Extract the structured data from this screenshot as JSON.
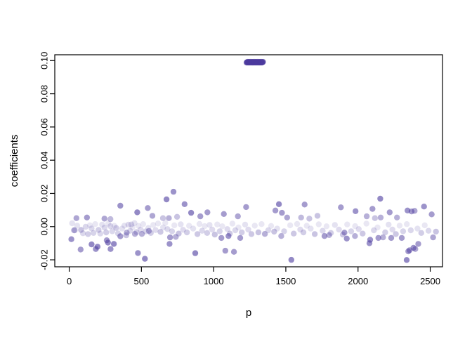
{
  "chart_data": {
    "type": "scatter",
    "title": "",
    "xlabel": "p",
    "ylabel": "coefficients",
    "grid": false,
    "legend": null,
    "point_color": "#4b3a9e",
    "axis_color": "#000000",
    "x_ticks": {
      "values": [
        0,
        500,
        1000,
        1500,
        2000,
        2500
      ],
      "labels": [
        "0",
        "500",
        "1000",
        "1500",
        "2000",
        "2500"
      ]
    },
    "y_ticks": {
      "values": [
        -0.02,
        0.0,
        0.02,
        0.04,
        0.06,
        0.08,
        0.1
      ],
      "labels": [
        "-0.02",
        "0.00",
        "0.02",
        "0.04",
        "0.06",
        "0.08",
        "0.10"
      ]
    },
    "x_range": [
      -100,
      2585
    ],
    "y_range": [
      -0.0242,
      0.1035
    ],
    "outlier_cluster": {
      "p_from": 1228,
      "p_to": 1342,
      "n": 60,
      "value": 0.099,
      "alpha": 0.5
    },
    "points": [
      [
        50,
        0.0051,
        0.45
      ],
      [
        123,
        0.0055,
        0.5
      ],
      [
        244,
        0.0048,
        0.45
      ],
      [
        285,
        0.0045,
        0.35
      ],
      [
        354,
        0.0126,
        0.55
      ],
      [
        471,
        0.0086,
        0.6
      ],
      [
        544,
        0.0112,
        0.5
      ],
      [
        576,
        0.0065,
        0.45
      ],
      [
        15,
        -0.0076,
        0.55
      ],
      [
        79,
        -0.0138,
        0.5
      ],
      [
        155,
        -0.0107,
        0.6
      ],
      [
        184,
        -0.0135,
        0.55
      ],
      [
        196,
        -0.0121,
        0.6
      ],
      [
        268,
        -0.0096,
        0.6
      ],
      [
        286,
        -0.0135,
        0.55
      ],
      [
        309,
        -0.0104,
        0.6
      ],
      [
        260,
        -0.0082,
        0.5
      ],
      [
        354,
        -0.0058,
        0.5
      ],
      [
        398,
        -0.0036,
        0.4
      ],
      [
        455,
        -0.0044,
        0.4
      ],
      [
        476,
        -0.0159,
        0.55
      ],
      [
        503,
        -0.0044,
        0.4
      ],
      [
        524,
        -0.0194,
        0.6
      ],
      [
        552,
        -0.0026,
        0.4
      ],
      [
        33,
        -0.0022,
        0.3
      ],
      [
        82,
        -0.002,
        0.3
      ],
      [
        114,
        -0.0001,
        0.2
      ],
      [
        155,
        -0.0011,
        0.2
      ],
      [
        203,
        -0.002,
        0.25
      ],
      [
        244,
        -0.0006,
        0.2
      ],
      [
        285,
        0.0003,
        0.2
      ],
      [
        325,
        -0.0008,
        0.25
      ],
      [
        382,
        0.0006,
        0.15
      ],
      [
        430,
        0.0013,
        0.2
      ],
      [
        722,
        0.021,
        0.55
      ],
      [
        674,
        0.0164,
        0.6
      ],
      [
        799,
        0.0135,
        0.55
      ],
      [
        844,
        0.0083,
        0.6
      ],
      [
        908,
        0.0062,
        0.5
      ],
      [
        957,
        0.0086,
        0.5
      ],
      [
        1071,
        0.0076,
        0.5
      ],
      [
        1168,
        0.0062,
        0.45
      ],
      [
        1225,
        0.0118,
        0.5
      ],
      [
        649,
        0.0051,
        0.3
      ],
      [
        690,
        0.0051,
        0.4
      ],
      [
        747,
        0.0059,
        0.3
      ],
      [
        698,
        -0.0065,
        0.5
      ],
      [
        738,
        -0.0062,
        0.4
      ],
      [
        695,
        -0.0104,
        0.55
      ],
      [
        873,
        -0.016,
        0.6
      ],
      [
        1081,
        -0.0145,
        0.5
      ],
      [
        1141,
        -0.0152,
        0.5
      ],
      [
        1054,
        -0.0068,
        0.5
      ],
      [
        1103,
        -0.0057,
        0.55
      ],
      [
        1184,
        -0.0068,
        0.5
      ],
      [
        1452,
        0.0135,
        0.6
      ],
      [
        1630,
        0.0133,
        0.5
      ],
      [
        1428,
        0.0097,
        0.5
      ],
      [
        1473,
        0.0083,
        0.5
      ],
      [
        1509,
        0.0055,
        0.45
      ],
      [
        1881,
        0.0116,
        0.5
      ],
      [
        1983,
        0.0093,
        0.55
      ],
      [
        1606,
        0.0055,
        0.35
      ],
      [
        1663,
        0.0048,
        0.3
      ],
      [
        1719,
        0.0065,
        0.3
      ],
      [
        1355,
        -0.0044,
        0.4
      ],
      [
        1419,
        -0.003,
        0.3
      ],
      [
        1468,
        -0.0057,
        0.4
      ],
      [
        1768,
        -0.0057,
        0.5
      ],
      [
        1800,
        -0.0051,
        0.4
      ],
      [
        1906,
        -0.0036,
        0.5
      ],
      [
        1922,
        -0.0072,
        0.55
      ],
      [
        1979,
        -0.0057,
        0.4
      ],
      [
        1538,
        -0.02,
        0.6
      ],
      [
        2154,
        0.0168,
        0.6
      ],
      [
        2100,
        0.0107,
        0.5
      ],
      [
        2219,
        0.0086,
        0.5
      ],
      [
        2343,
        0.0097,
        0.55
      ],
      [
        2371,
        0.0091,
        0.5
      ],
      [
        2392,
        0.0095,
        0.45
      ],
      [
        2457,
        0.0121,
        0.55
      ],
      [
        2270,
        0.0055,
        0.4
      ],
      [
        2060,
        0.0062,
        0.4
      ],
      [
        2117,
        0.0051,
        0.3
      ],
      [
        2157,
        0.0055,
        0.4
      ],
      [
        2084,
        -0.0079,
        0.55
      ],
      [
        2141,
        -0.0068,
        0.5
      ],
      [
        2173,
        -0.0065,
        0.4
      ],
      [
        2230,
        -0.0068,
        0.5
      ],
      [
        2303,
        -0.0068,
        0.5
      ],
      [
        2079,
        -0.01,
        0.55
      ],
      [
        2384,
        -0.0128,
        0.55
      ],
      [
        2417,
        -0.0104,
        0.5
      ],
      [
        2357,
        -0.0142,
        0.5
      ],
      [
        2337,
        -0.0201,
        0.6
      ],
      [
        2348,
        -0.0149,
        0.5
      ],
      [
        2397,
        -0.0135,
        0.45
      ],
      [
        2510,
        0.0074,
        0.5
      ],
      [
        2520,
        -0.0065,
        0.45
      ],
      [
        2540,
        -0.003,
        0.3
      ],
      [
        20,
        0.002,
        0.15
      ],
      [
        38,
        -0.0022,
        0.3
      ],
      [
        55,
        0.0006,
        0.15
      ],
      [
        95,
        -0.004,
        0.2
      ],
      [
        130,
        -0.0045,
        0.25
      ],
      [
        143,
        0.0008,
        0.12
      ],
      [
        168,
        -0.0038,
        0.22
      ],
      [
        180,
        0.0015,
        0.12
      ],
      [
        215,
        -0.0042,
        0.2
      ],
      [
        228,
        0.0012,
        0.15
      ],
      [
        256,
        -0.0035,
        0.25
      ],
      [
        270,
        0.0018,
        0.12
      ],
      [
        298,
        -0.0028,
        0.2
      ],
      [
        312,
        0.0005,
        0.12
      ],
      [
        338,
        -0.0041,
        0.22
      ],
      [
        366,
        -0.0012,
        0.15
      ],
      [
        395,
        -0.0052,
        0.3
      ],
      [
        410,
        0.0012,
        0.18
      ],
      [
        422,
        -0.0025,
        0.2
      ],
      [
        438,
        -0.0005,
        0.12
      ],
      [
        452,
        0.0021,
        0.15
      ],
      [
        466,
        -0.0033,
        0.25
      ],
      [
        480,
        0.0004,
        0.12
      ],
      [
        495,
        -0.0018,
        0.18
      ],
      [
        512,
        0.0015,
        0.12
      ],
      [
        530,
        -0.0029,
        0.22
      ],
      [
        548,
        -0.0008,
        0.15
      ],
      [
        565,
        -0.0038,
        0.25
      ],
      [
        582,
        0.001,
        0.12
      ],
      [
        598,
        -0.0021,
        0.18
      ],
      [
        615,
        0.0019,
        0.12
      ],
      [
        632,
        -0.0032,
        0.28
      ],
      [
        650,
        -0.0005,
        0.15
      ],
      [
        665,
        0.0022,
        0.12
      ],
      [
        680,
        -0.0015,
        0.2
      ],
      [
        712,
        -0.0028,
        0.22
      ],
      [
        728,
        0.0008,
        0.12
      ],
      [
        758,
        -0.0042,
        0.3
      ],
      [
        772,
        0.0014,
        0.15
      ],
      [
        788,
        -0.0019,
        0.18
      ],
      [
        815,
        -0.0035,
        0.25
      ],
      [
        830,
        0.0005,
        0.12
      ],
      [
        858,
        -0.0012,
        0.15
      ],
      [
        888,
        -0.0045,
        0.28
      ],
      [
        902,
        0.0016,
        0.12
      ],
      [
        920,
        -0.0025,
        0.2
      ],
      [
        938,
        0.0003,
        0.12
      ],
      [
        955,
        -0.0038,
        0.25
      ],
      [
        972,
        0.001,
        0.15
      ],
      [
        990,
        -0.0018,
        0.18
      ],
      [
        1008,
        -0.0048,
        0.3
      ],
      [
        1025,
        0.0013,
        0.12
      ],
      [
        1042,
        -0.0028,
        0.22
      ],
      [
        1060,
        0.0002,
        0.12
      ],
      [
        1095,
        -0.0015,
        0.18
      ],
      [
        1112,
        -0.0042,
        0.28
      ],
      [
        1130,
        0.0018,
        0.12
      ],
      [
        1150,
        -0.0022,
        0.2
      ],
      [
        1172,
        -0.0005,
        0.12
      ],
      [
        1195,
        -0.0035,
        0.25
      ],
      [
        1218,
        0.0012,
        0.15
      ],
      [
        1240,
        -0.0018,
        0.18
      ],
      [
        1262,
        -0.0045,
        0.28
      ],
      [
        1285,
        0.0006,
        0.12
      ],
      [
        1310,
        -0.0035,
        0.3
      ],
      [
        1332,
        0.0015,
        0.12
      ],
      [
        1378,
        -0.0022,
        0.2
      ],
      [
        1398,
        0.0004,
        0.12
      ],
      [
        1440,
        -0.0012,
        0.15
      ],
      [
        1488,
        -0.0028,
        0.22
      ],
      [
        1530,
        0.0008,
        0.12
      ],
      [
        1555,
        -0.0042,
        0.28
      ],
      [
        1578,
        0.0016,
        0.12
      ],
      [
        1600,
        -0.0018,
        0.18
      ],
      [
        1622,
        -0.0035,
        0.25
      ],
      [
        1645,
        0.0005,
        0.12
      ],
      [
        1672,
        -0.0012,
        0.15
      ],
      [
        1700,
        -0.0045,
        0.3
      ],
      [
        1728,
        0.0014,
        0.12
      ],
      [
        1755,
        -0.0025,
        0.2
      ],
      [
        1782,
        0.0002,
        0.12
      ],
      [
        1812,
        -0.0038,
        0.25
      ],
      [
        1840,
        0.001,
        0.15
      ],
      [
        1868,
        -0.0018,
        0.18
      ],
      [
        1895,
        -0.0048,
        0.28
      ],
      [
        1925,
        0.0013,
        0.12
      ],
      [
        1952,
        -0.0028,
        0.22
      ],
      [
        1980,
        0.0003,
        0.12
      ],
      [
        2005,
        -0.0015,
        0.18
      ],
      [
        2032,
        -0.0042,
        0.28
      ],
      [
        2058,
        0.0018,
        0.12
      ],
      [
        2110,
        -0.0022,
        0.2
      ],
      [
        2135,
        -0.0005,
        0.12
      ],
      [
        2188,
        -0.0035,
        0.25
      ],
      [
        2212,
        0.0012,
        0.15
      ],
      [
        2238,
        -0.0018,
        0.18
      ],
      [
        2262,
        -0.0045,
        0.28
      ],
      [
        2288,
        0.0006,
        0.12
      ],
      [
        2312,
        -0.0028,
        0.22
      ],
      [
        2338,
        0.0015,
        0.12
      ],
      [
        2365,
        -0.0022,
        0.2
      ],
      [
        2412,
        -0.0012,
        0.15
      ],
      [
        2438,
        -0.0038,
        0.25
      ],
      [
        2462,
        0.0008,
        0.12
      ],
      [
        2488,
        -0.0025,
        0.2
      ]
    ]
  }
}
